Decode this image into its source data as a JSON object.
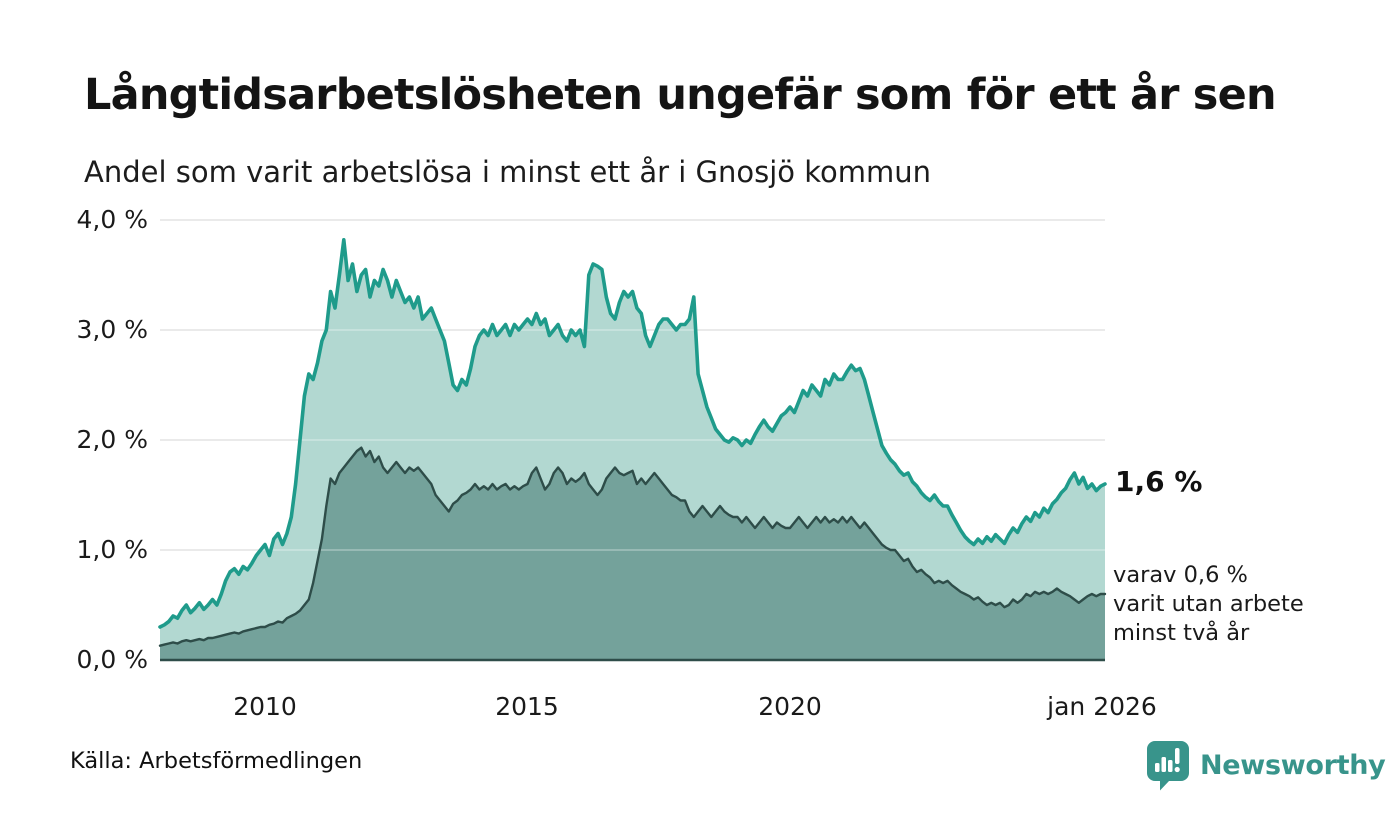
{
  "header": {
    "title": "Långtidsarbetslösheten ungefär som för ett år sen",
    "subtitle": "Andel som varit arbetslösa i minst ett år i Gnosjö kommun"
  },
  "chart_data": {
    "type": "area",
    "title": "Långtidsarbetslösheten ungefär som för ett år sen",
    "subtitle": "Andel som varit arbetslösa i minst ett år i Gnosjö kommun",
    "x_axis": {
      "start_year": 2008.0,
      "end_year": 2026.0,
      "step_months": 1,
      "ticks": [
        {
          "label": "2010",
          "year": 2010
        },
        {
          "label": "2015",
          "year": 2015
        },
        {
          "label": "2020",
          "year": 2020
        },
        {
          "label": "jan 2026",
          "year": 2026
        }
      ]
    },
    "y_axis": {
      "unit": "%",
      "ylim": [
        0.0,
        4.0
      ],
      "ticks": [
        {
          "label": "4,0 %",
          "value": 4.0
        },
        {
          "label": "3,0 %",
          "value": 3.0
        },
        {
          "label": "2,0 %",
          "value": 2.0
        },
        {
          "label": "1,0 %",
          "value": 1.0
        },
        {
          "label": "0,0 %",
          "value": 0.0
        }
      ],
      "grid": true
    },
    "legend_position": "none",
    "series": [
      {
        "name": "arbetslösa minst ett år",
        "last_value_label": "1,6 %",
        "values": [
          0.3,
          0.32,
          0.35,
          0.4,
          0.38,
          0.45,
          0.5,
          0.43,
          0.47,
          0.52,
          0.46,
          0.5,
          0.55,
          0.5,
          0.6,
          0.72,
          0.8,
          0.83,
          0.78,
          0.85,
          0.82,
          0.88,
          0.95,
          1.0,
          1.05,
          0.95,
          1.1,
          1.15,
          1.05,
          1.15,
          1.3,
          1.6,
          2.0,
          2.4,
          2.6,
          2.55,
          2.7,
          2.9,
          3.0,
          3.35,
          3.2,
          3.5,
          3.82,
          3.45,
          3.6,
          3.35,
          3.5,
          3.55,
          3.3,
          3.45,
          3.4,
          3.55,
          3.45,
          3.3,
          3.45,
          3.35,
          3.25,
          3.3,
          3.2,
          3.3,
          3.1,
          3.15,
          3.2,
          3.1,
          3.0,
          2.9,
          2.7,
          2.5,
          2.45,
          2.55,
          2.5,
          2.65,
          2.85,
          2.95,
          3.0,
          2.95,
          3.05,
          2.95,
          3.0,
          3.05,
          2.95,
          3.05,
          3.0,
          3.05,
          3.1,
          3.05,
          3.15,
          3.05,
          3.1,
          2.95,
          3.0,
          3.05,
          2.95,
          2.9,
          3.0,
          2.95,
          3.0,
          2.85,
          3.5,
          3.6,
          3.58,
          3.55,
          3.3,
          3.15,
          3.1,
          3.25,
          3.35,
          3.3,
          3.35,
          3.2,
          3.15,
          2.95,
          2.85,
          2.95,
          3.05,
          3.1,
          3.1,
          3.05,
          3.0,
          3.05,
          3.05,
          3.1,
          3.3,
          2.6,
          2.45,
          2.3,
          2.2,
          2.1,
          2.05,
          2.0,
          1.98,
          2.02,
          2.0,
          1.95,
          2.0,
          1.97,
          2.05,
          2.12,
          2.18,
          2.12,
          2.08,
          2.15,
          2.22,
          2.25,
          2.3,
          2.25,
          2.35,
          2.45,
          2.4,
          2.5,
          2.45,
          2.4,
          2.55,
          2.5,
          2.6,
          2.55,
          2.55,
          2.62,
          2.68,
          2.63,
          2.65,
          2.55,
          2.4,
          2.25,
          2.1,
          1.95,
          1.88,
          1.82,
          1.78,
          1.72,
          1.68,
          1.7,
          1.62,
          1.58,
          1.52,
          1.48,
          1.45,
          1.5,
          1.44,
          1.4,
          1.4,
          1.32,
          1.25,
          1.18,
          1.12,
          1.08,
          1.05,
          1.1,
          1.06,
          1.12,
          1.08,
          1.14,
          1.1,
          1.06,
          1.14,
          1.2,
          1.16,
          1.24,
          1.3,
          1.26,
          1.34,
          1.3,
          1.38,
          1.34,
          1.42,
          1.46,
          1.52,
          1.56,
          1.64,
          1.7,
          1.6,
          1.66,
          1.56,
          1.6,
          1.54,
          1.58,
          1.6
        ]
      },
      {
        "name": "varit utan arbete minst två år",
        "last_value_label": "0,6 %",
        "values": [
          0.13,
          0.14,
          0.15,
          0.16,
          0.15,
          0.17,
          0.18,
          0.17,
          0.18,
          0.19,
          0.18,
          0.2,
          0.2,
          0.21,
          0.22,
          0.23,
          0.24,
          0.25,
          0.24,
          0.26,
          0.27,
          0.28,
          0.29,
          0.3,
          0.3,
          0.32,
          0.33,
          0.35,
          0.34,
          0.38,
          0.4,
          0.42,
          0.45,
          0.5,
          0.55,
          0.7,
          0.9,
          1.1,
          1.4,
          1.65,
          1.6,
          1.7,
          1.75,
          1.8,
          1.85,
          1.9,
          1.93,
          1.85,
          1.9,
          1.8,
          1.85,
          1.75,
          1.7,
          1.75,
          1.8,
          1.75,
          1.7,
          1.75,
          1.72,
          1.75,
          1.7,
          1.65,
          1.6,
          1.5,
          1.45,
          1.4,
          1.35,
          1.42,
          1.45,
          1.5,
          1.52,
          1.55,
          1.6,
          1.55,
          1.58,
          1.55,
          1.6,
          1.55,
          1.58,
          1.6,
          1.55,
          1.58,
          1.55,
          1.58,
          1.6,
          1.7,
          1.75,
          1.65,
          1.55,
          1.6,
          1.7,
          1.75,
          1.7,
          1.6,
          1.65,
          1.62,
          1.65,
          1.7,
          1.6,
          1.55,
          1.5,
          1.55,
          1.65,
          1.7,
          1.75,
          1.7,
          1.68,
          1.7,
          1.72,
          1.6,
          1.65,
          1.6,
          1.65,
          1.7,
          1.65,
          1.6,
          1.55,
          1.5,
          1.48,
          1.45,
          1.45,
          1.35,
          1.3,
          1.35,
          1.4,
          1.35,
          1.3,
          1.35,
          1.4,
          1.35,
          1.32,
          1.3,
          1.3,
          1.25,
          1.3,
          1.25,
          1.2,
          1.25,
          1.3,
          1.25,
          1.2,
          1.25,
          1.22,
          1.2,
          1.2,
          1.25,
          1.3,
          1.25,
          1.2,
          1.25,
          1.3,
          1.25,
          1.3,
          1.25,
          1.28,
          1.25,
          1.3,
          1.25,
          1.3,
          1.25,
          1.2,
          1.25,
          1.2,
          1.15,
          1.1,
          1.05,
          1.02,
          1.0,
          1.0,
          0.95,
          0.9,
          0.92,
          0.85,
          0.8,
          0.82,
          0.78,
          0.75,
          0.7,
          0.72,
          0.7,
          0.72,
          0.68,
          0.65,
          0.62,
          0.6,
          0.58,
          0.55,
          0.57,
          0.53,
          0.5,
          0.52,
          0.5,
          0.52,
          0.48,
          0.5,
          0.55,
          0.52,
          0.55,
          0.6,
          0.58,
          0.62,
          0.6,
          0.62,
          0.6,
          0.62,
          0.65,
          0.62,
          0.6,
          0.58,
          0.55,
          0.52,
          0.55,
          0.58,
          0.6,
          0.58,
          0.6,
          0.6
        ]
      }
    ],
    "annotations": {
      "end_value": "1,6 %",
      "subnote_lines": [
        "varav 0,6 %",
        "varit utan arbete",
        "minst två år"
      ]
    },
    "colors": {
      "line1": "#1f9b8b",
      "area1_fill": "#b2d8d1",
      "line2": "#2e4d49",
      "area2_fill": "#74a29b",
      "gridline": "#d9d9d9",
      "axis": "#2e4d49"
    }
  },
  "footer": {
    "source": "Källa: Arbetsförmedlingen",
    "brand": "Newsworthy",
    "brand_color": "#38948b"
  }
}
